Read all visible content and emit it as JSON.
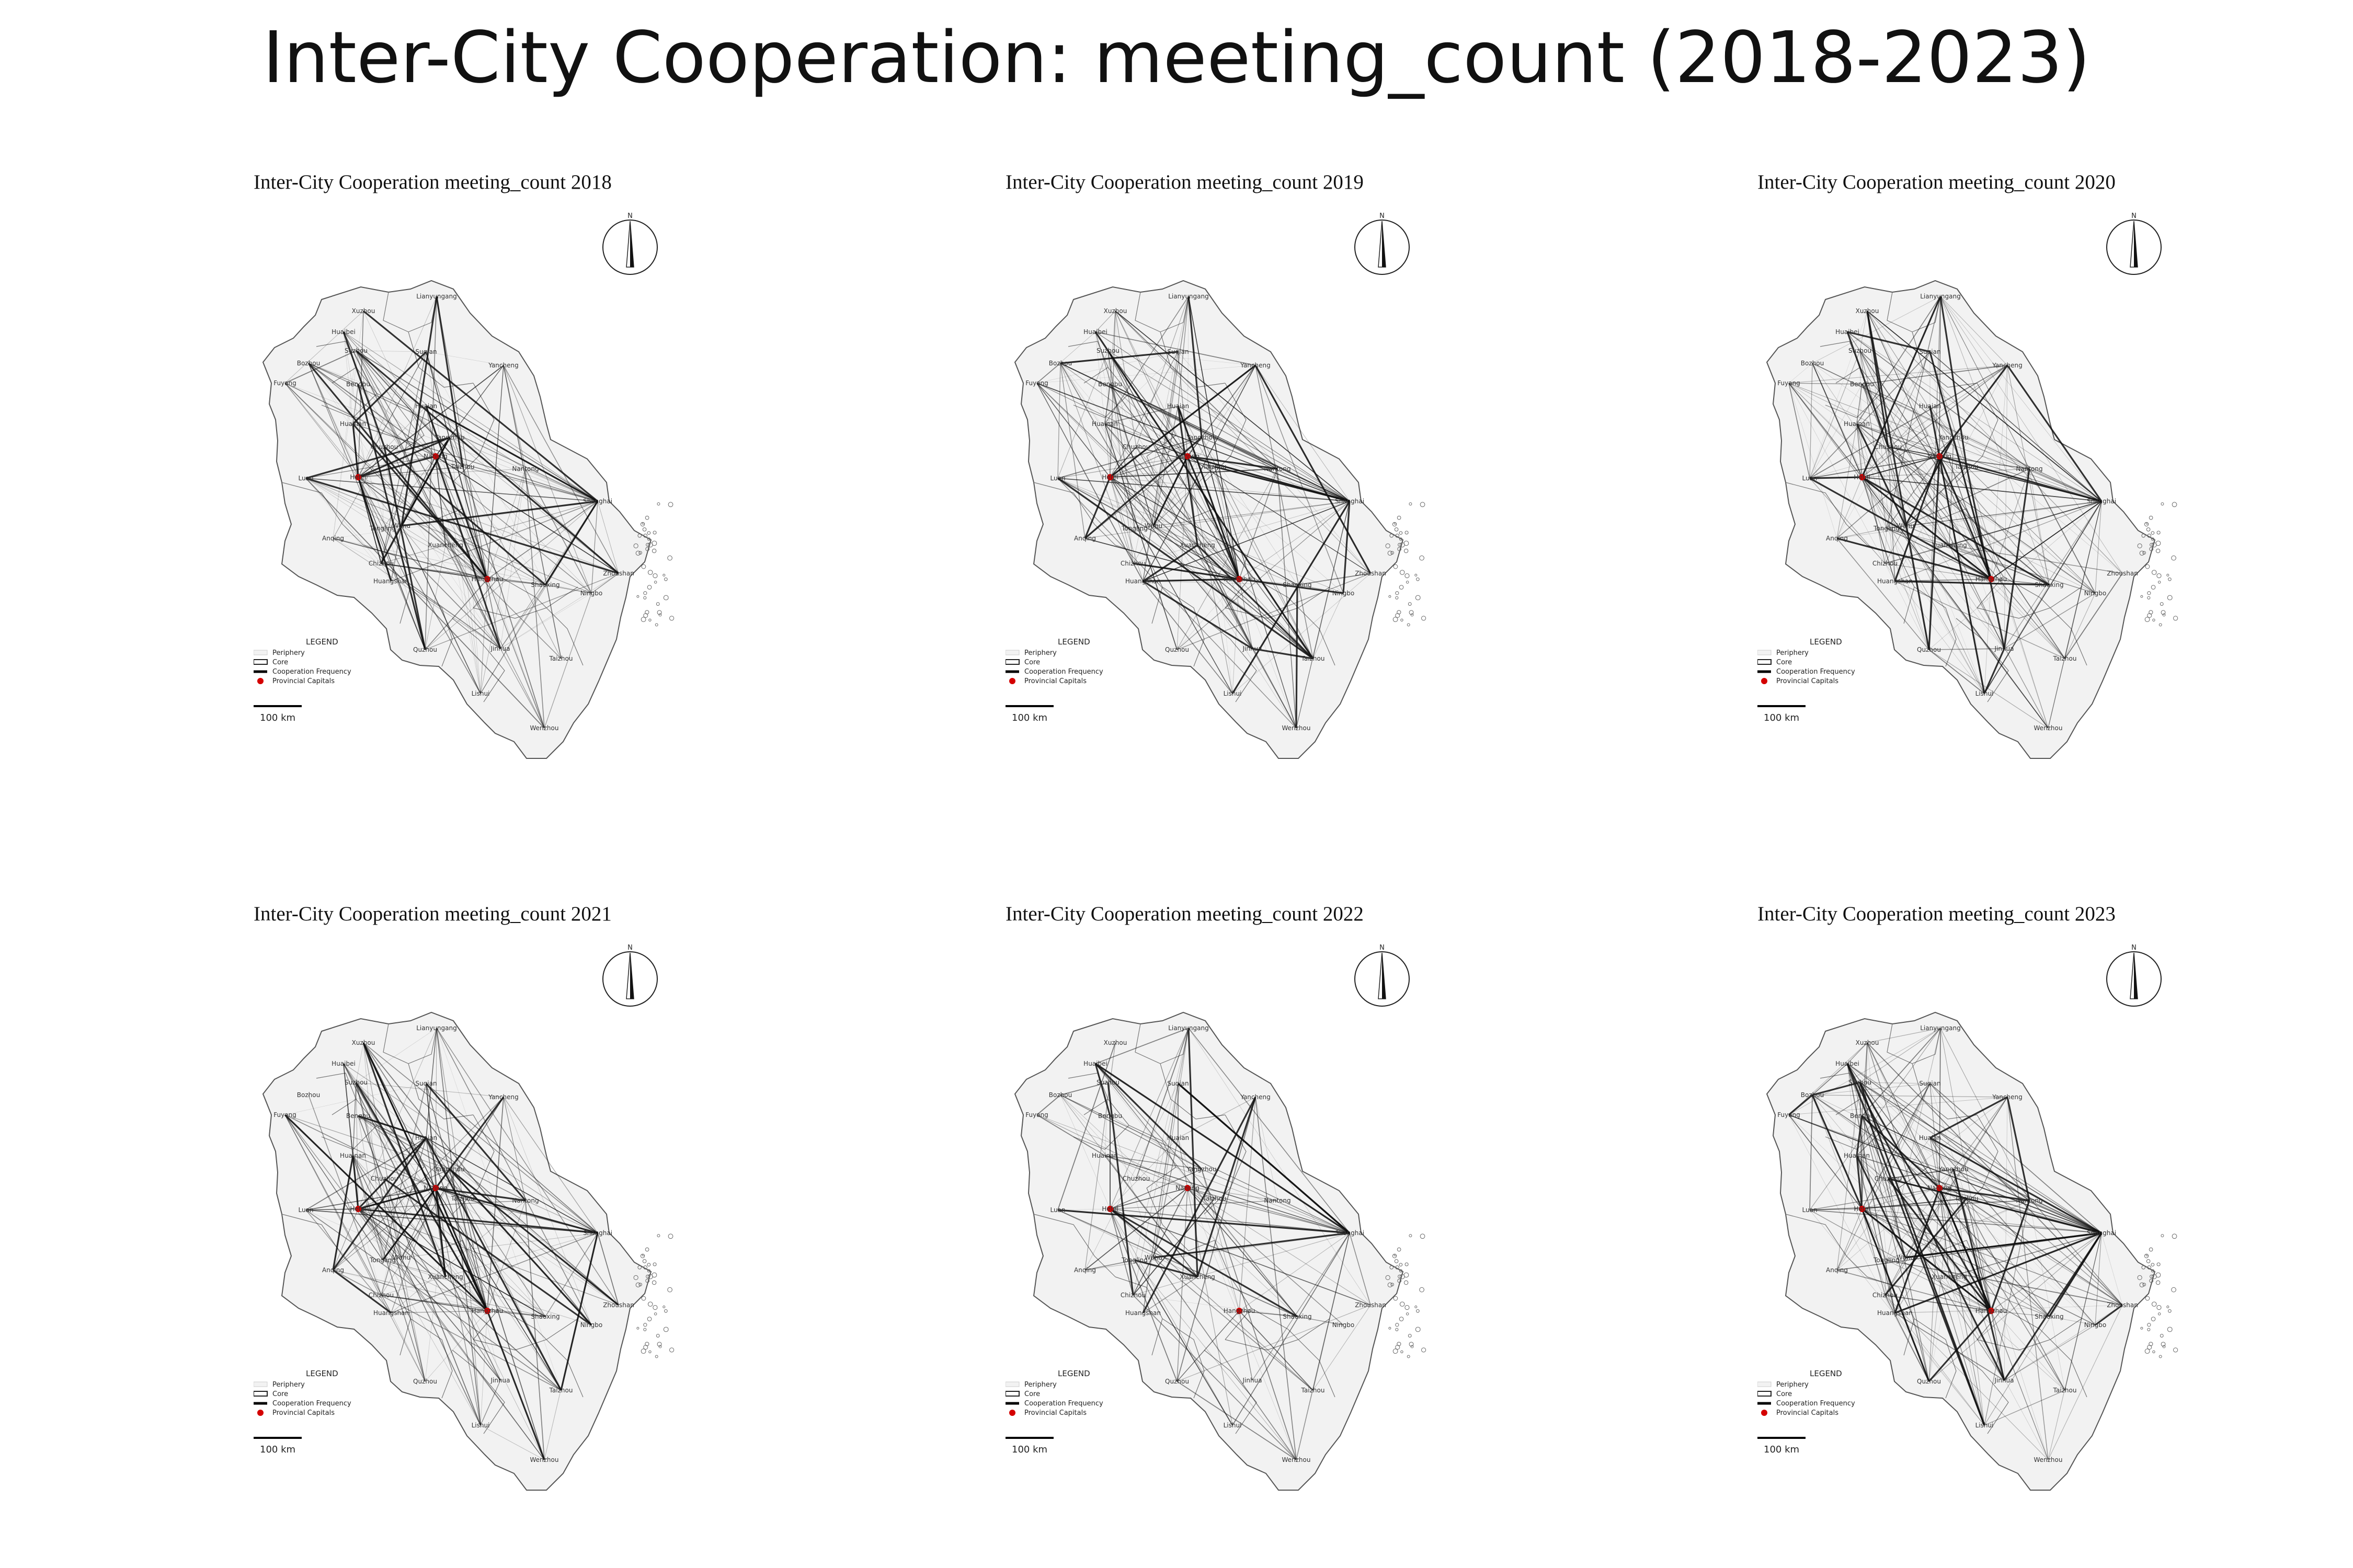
{
  "figure": {
    "title": "Inter-City Cooperation: meeting_count (2018-2023)"
  },
  "panels": [
    {
      "title": "Inter-City Cooperation meeting_count 2018",
      "year": 2018,
      "density": 1.0
    },
    {
      "title": "Inter-City Cooperation meeting_count 2019",
      "year": 2019,
      "density": 1.15
    },
    {
      "title": "Inter-City Cooperation meeting_count 2020",
      "year": 2020,
      "density": 1.05
    },
    {
      "title": "Inter-City Cooperation meeting_count 2021",
      "year": 2021,
      "density": 0.9
    },
    {
      "title": "Inter-City Cooperation meeting_count 2022",
      "year": 2022,
      "density": 0.55
    },
    {
      "title": "Inter-City Cooperation meeting_count 2023",
      "year": 2023,
      "density": 1.0
    }
  ],
  "cities": [
    {
      "name": "Lianyungang",
      "capital": false
    },
    {
      "name": "Xuzhou",
      "capital": false
    },
    {
      "name": "Suqian",
      "capital": false
    },
    {
      "name": "Huaibei",
      "capital": false
    },
    {
      "name": "Suzhou",
      "capital": false
    },
    {
      "name": "Bozhou",
      "capital": false
    },
    {
      "name": "Bengbu",
      "capital": false
    },
    {
      "name": "Fuyang",
      "capital": false
    },
    {
      "name": "Huainan",
      "capital": false
    },
    {
      "name": "Huaian",
      "capital": false
    },
    {
      "name": "Yancheng",
      "capital": false
    },
    {
      "name": "Chuzhou",
      "capital": false
    },
    {
      "name": "Yangzhou",
      "capital": false
    },
    {
      "name": "Taizhou",
      "capital": false
    },
    {
      "name": "Nantong",
      "capital": false
    },
    {
      "name": "Nanjing",
      "capital": true
    },
    {
      "name": "Hefei",
      "capital": true
    },
    {
      "name": "Luan",
      "capital": false
    },
    {
      "name": "Shanghai",
      "capital": false
    },
    {
      "name": "Tongling",
      "capital": false
    },
    {
      "name": "Wuhu",
      "capital": false
    },
    {
      "name": "Anqing",
      "capital": false
    },
    {
      "name": "Chizhou",
      "capital": false
    },
    {
      "name": "Xuancheng",
      "capital": false
    },
    {
      "name": "Huangshan",
      "capital": false
    },
    {
      "name": "Hangzhou",
      "capital": true
    },
    {
      "name": "Shaoxing",
      "capital": false
    },
    {
      "name": "Ningbo",
      "capital": false
    },
    {
      "name": "Zhoushan",
      "capital": false
    },
    {
      "name": "Jinhua",
      "capital": false
    },
    {
      "name": "Quzhou",
      "capital": false
    },
    {
      "name": "Taizhou",
      "capital": false
    },
    {
      "name": "Lishui",
      "capital": false
    },
    {
      "name": "Wenzhou",
      "capital": false
    }
  ],
  "legend": {
    "title": "LEGEND",
    "items": [
      "Periphery",
      "Core",
      "Cooperation Frequency",
      "Provincial Capitals"
    ]
  },
  "scale_bar": {
    "label": "100 km"
  },
  "north_arrow": {
    "label": "N"
  },
  "colors": {
    "region_fill": "#f2f2f2",
    "region_stroke": "#555555",
    "edge": "#111111",
    "capital": "#d40000"
  }
}
